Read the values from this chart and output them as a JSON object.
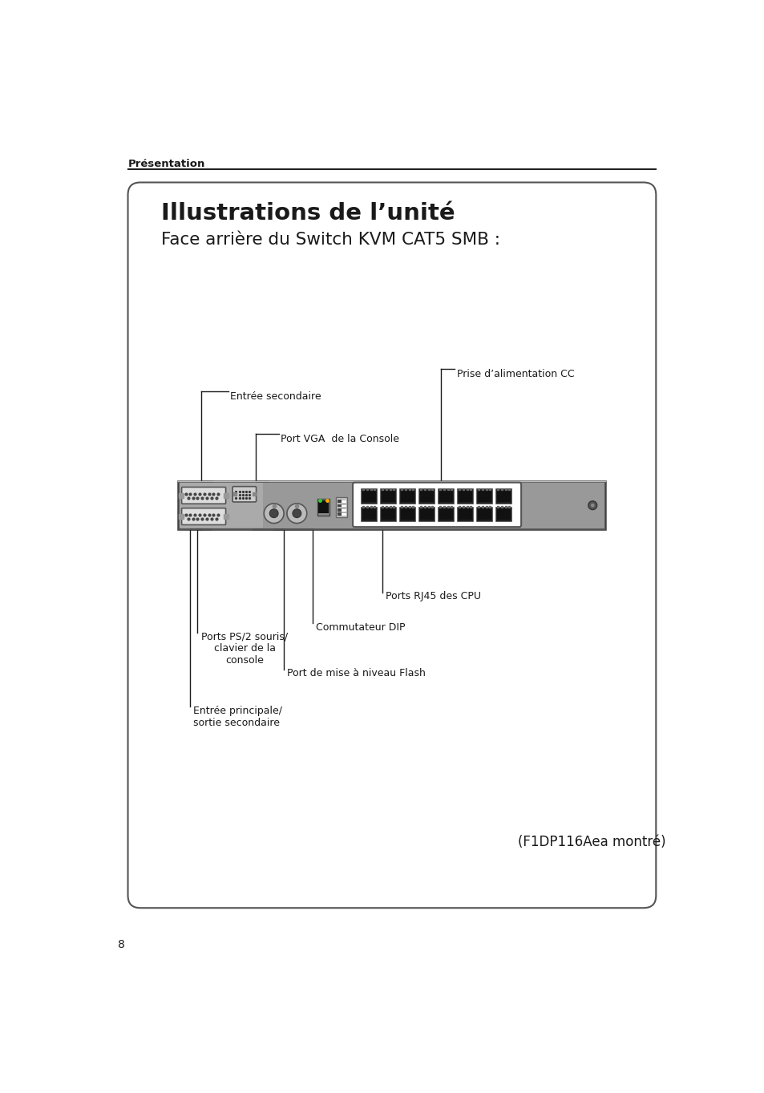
{
  "page_title": "Présentation",
  "box_title": "Illustrations de l’unité",
  "subtitle": "Face arrière du Switch KVM CAT5 SMB :",
  "footer_note": "(F1DP116Aea montré)",
  "page_number": "8",
  "background_color": "#ffffff",
  "box_border_color": "#555555",
  "header_line_color": "#222222",
  "labels": {
    "entree_secondaire": "Entrée secondaire",
    "port_vga": "Port VGA  de la Console",
    "prise_alimentation": "Prise d’alimentation CC",
    "ports_rj45": "Ports RJ45 des CPU",
    "commutateur_dip": "Commutateur DIP",
    "ports_ps2": "Ports PS/2 souris/\nclavier de la\nconsole",
    "port_flash": "Port de mise à niveau Flash",
    "entree_principale": "Entrée principale/\nsortie secondaire"
  },
  "device_color": "#999999",
  "text_color": "#1a1a1a",
  "line_color": "#1a1a1a"
}
